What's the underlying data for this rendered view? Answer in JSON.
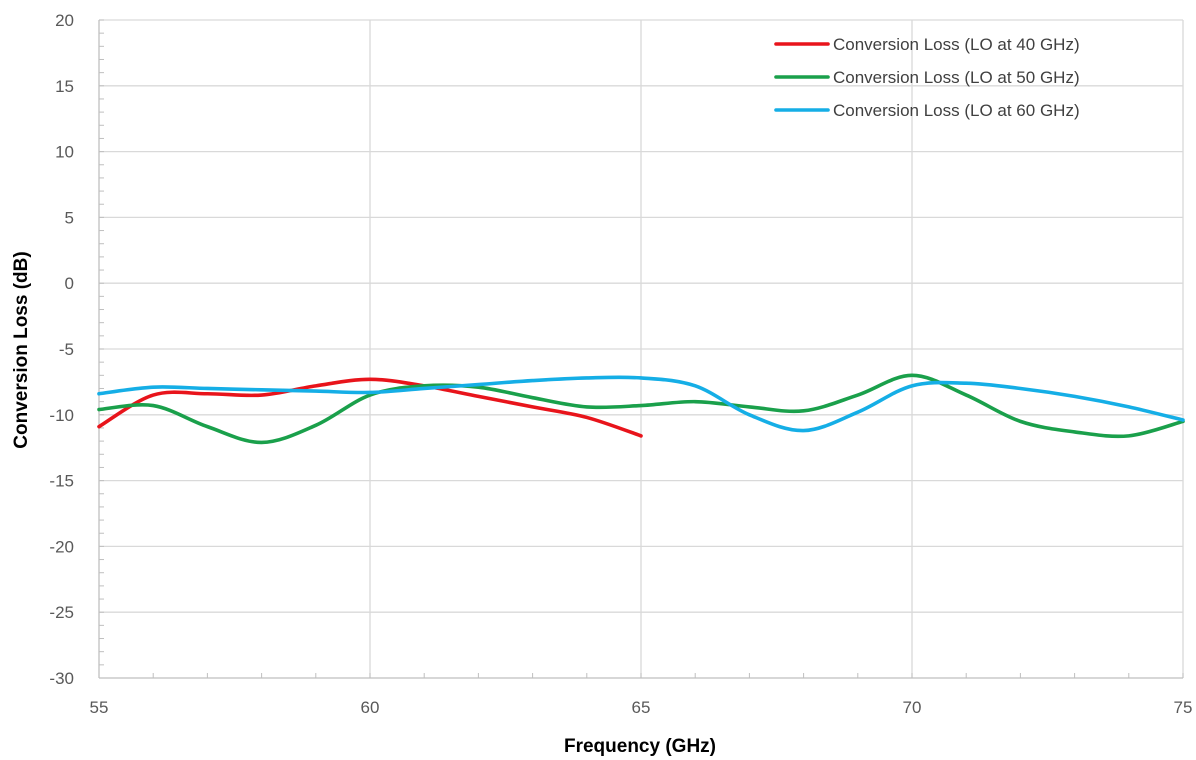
{
  "chart_data": {
    "type": "line",
    "title": "",
    "xlabel": "Frequency (GHz)",
    "ylabel": "Conversion Loss (dB)",
    "xlim": [
      55,
      75
    ],
    "ylim": [
      -30,
      20
    ],
    "x_ticks": [
      55,
      60,
      65,
      70,
      75
    ],
    "y_ticks": [
      20,
      15,
      10,
      5,
      0,
      -5,
      -10,
      -15,
      -20,
      -25,
      -30
    ],
    "x_minor_step": 1,
    "y_minor_step": 1,
    "grid": true,
    "legend_position": "top-right",
    "series": [
      {
        "name": "Conversion Loss (LO at 40 GHz)",
        "color": "#e8141b",
        "x": [
          55,
          56,
          57,
          58,
          59,
          60,
          61,
          62,
          63,
          64,
          65
        ],
        "y": [
          -10.9,
          -8.5,
          -8.4,
          -8.5,
          -7.8,
          -7.3,
          -7.8,
          -8.6,
          -9.4,
          -10.2,
          -11.6
        ]
      },
      {
        "name": "Conversion Loss (LO at 50 GHz)",
        "color": "#1aa04b",
        "x": [
          55,
          56,
          57,
          58,
          59,
          60,
          61,
          62,
          63,
          64,
          65,
          66,
          67,
          68,
          69,
          70,
          71,
          72,
          73,
          74,
          75
        ],
        "y": [
          -9.6,
          -9.3,
          -10.9,
          -12.1,
          -10.8,
          -8.5,
          -7.8,
          -7.9,
          -8.7,
          -9.4,
          -9.3,
          -9.0,
          -9.4,
          -9.7,
          -8.5,
          -7.0,
          -8.5,
          -10.5,
          -11.3,
          -11.6,
          -10.5
        ]
      },
      {
        "name": "Conversion Loss (LO at 60 GHz)",
        "color": "#15aee6",
        "x": [
          55,
          56,
          57,
          58,
          59,
          60,
          61,
          62,
          63,
          64,
          65,
          66,
          67,
          68,
          69,
          70,
          71,
          72,
          73,
          74,
          75
        ],
        "y": [
          -8.4,
          -7.9,
          -8.0,
          -8.1,
          -8.2,
          -8.3,
          -8.0,
          -7.7,
          -7.4,
          -7.2,
          -7.2,
          -7.8,
          -10.0,
          -11.2,
          -9.8,
          -7.8,
          -7.6,
          -8.0,
          -8.6,
          -9.4,
          -10.4
        ]
      }
    ]
  }
}
